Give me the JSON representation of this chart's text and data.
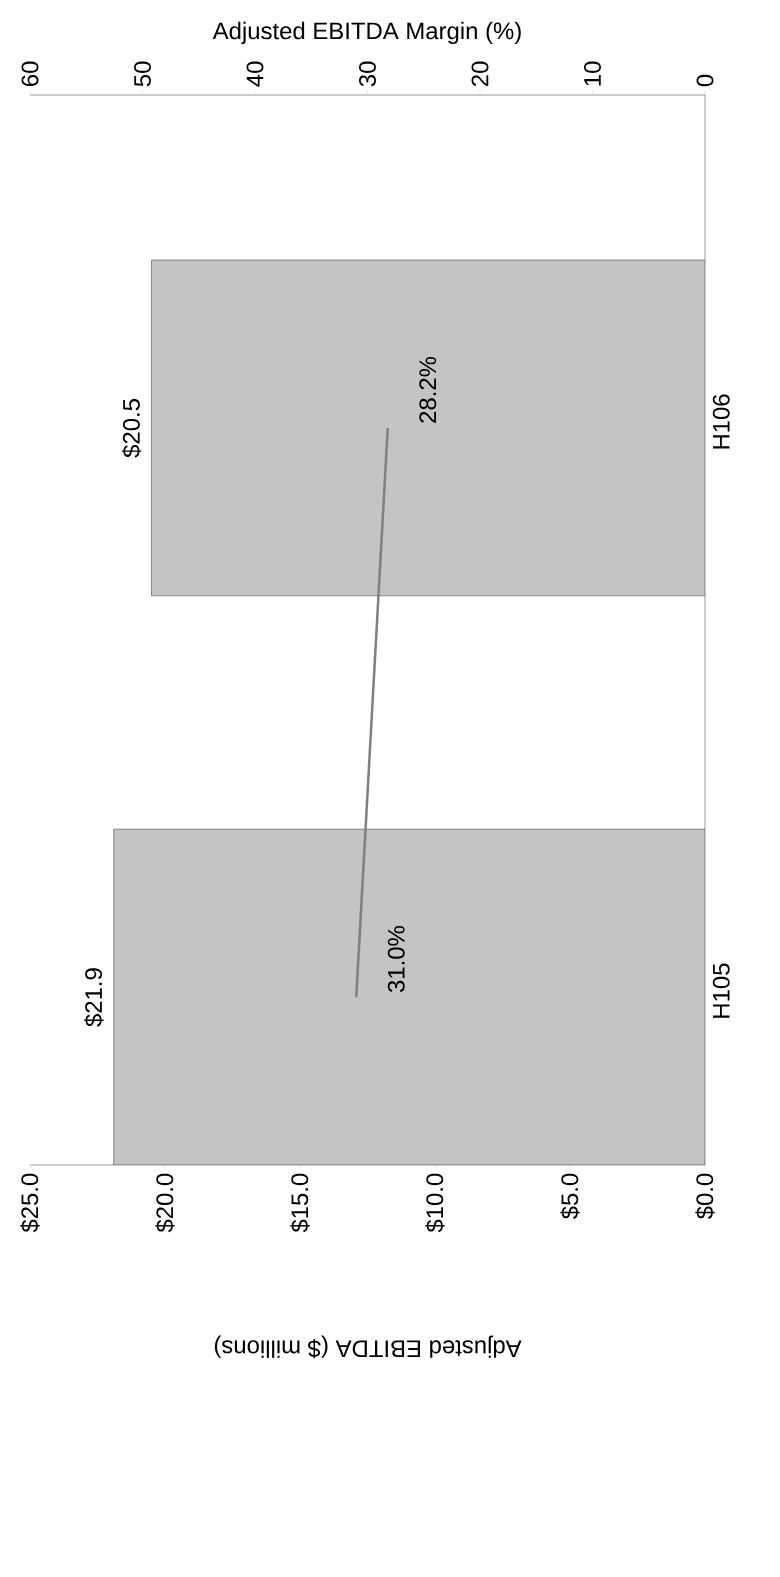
{
  "chart_data": {
    "type": "bar",
    "orientation": "horizontal",
    "xlabel": "Adjusted EBITDA ($ millions)",
    "x2label": "Adjusted EBITDA Margin (%)",
    "categories": [
      "H106",
      "H105"
    ],
    "series": [
      {
        "color": "#c4c4c4",
        "values": [
          20.5,
          21.9
        ],
        "value_labels": [
          "$20.5",
          "$21.9"
        ]
      },
      {
        "type": "line",
        "axis": "x2",
        "color": "#808080",
        "values": [
          28.2,
          31.0
        ],
        "value_labels": [
          "28.2%",
          "31.0%"
        ]
      }
    ],
    "xlim": [
      25,
      0
    ],
    "xticks": [
      {
        "value": 0,
        "label": "$0.0"
      },
      {
        "value": 5,
        "label": "$5.0"
      },
      {
        "value": 10,
        "label": "$10.0"
      },
      {
        "value": 15,
        "label": "$15.0"
      },
      {
        "value": 20,
        "label": "$20.0"
      },
      {
        "value": 25,
        "label": "$25.0"
      }
    ],
    "x2lim": [
      60,
      0
    ],
    "x2ticks": [
      0,
      10,
      20,
      30,
      40,
      50,
      60
    ],
    "marker": "none"
  }
}
